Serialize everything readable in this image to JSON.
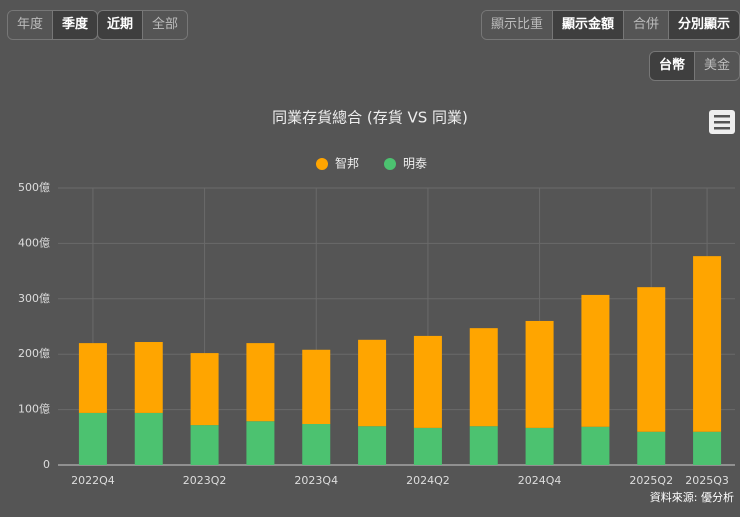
{
  "controls": {
    "period": [
      "年度",
      "季度"
    ],
    "range": [
      "近期",
      "全部"
    ],
    "display": [
      "顯示比重",
      "顯示金額",
      "合併",
      "分別顯示"
    ],
    "currency": [
      "台幣",
      "美金"
    ]
  },
  "chart_data": {
    "type": "stacked-bar",
    "title": "同業存貨總合 (存貨 VS 同業)",
    "source": "資料來源: 優分析",
    "categories": [
      "2022Q4",
      null,
      "2023Q2",
      null,
      "2023Q4",
      null,
      "2024Q2",
      null,
      "2024Q4",
      null,
      "2025Q2",
      "2025Q3"
    ],
    "series": [
      {
        "name": "明泰",
        "color": "#4cc270",
        "values": [
          94,
          94,
          72,
          79,
          74,
          70,
          67,
          70,
          67,
          69,
          60,
          60
        ]
      },
      {
        "name": "智邦",
        "color": "#ffa500",
        "values": [
          126,
          128,
          130,
          141,
          134,
          156,
          166,
          177,
          193,
          238,
          261,
          317
        ]
      }
    ],
    "ylim": [
      0,
      500
    ],
    "yticks": [
      0,
      {
        "value": 100,
        "label": "100億"
      },
      {
        "value": 200,
        "label": "200億"
      },
      {
        "value": 300,
        "label": "300億"
      },
      {
        "value": 400,
        "label": "400億"
      },
      {
        "value": 500,
        "label": "500億"
      }
    ],
    "grid": true
  }
}
